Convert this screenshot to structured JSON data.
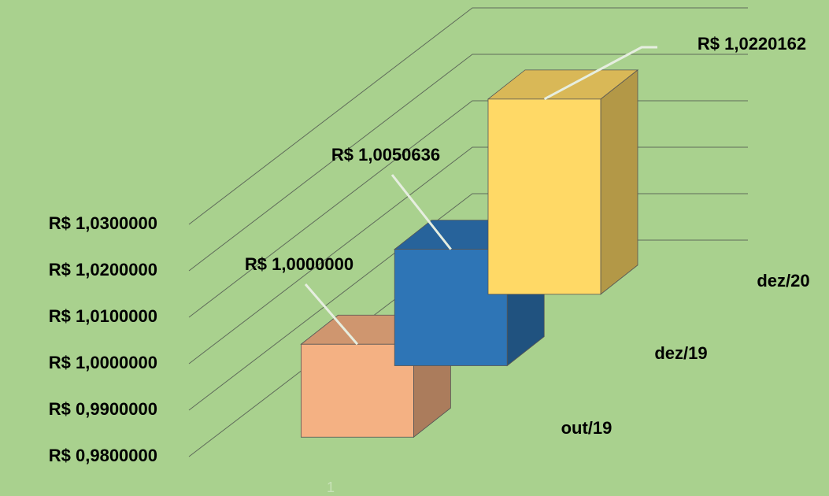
{
  "chart_data": {
    "type": "bar3d",
    "categories": [
      "out/19",
      "dez/19",
      "dez/20"
    ],
    "values": [
      1.0,
      1.0050636,
      1.0220162
    ],
    "value_labels": [
      "R$ 1,0000000",
      "R$ 1,0050636",
      "R$ 1,0220162"
    ],
    "colors": [
      "#f4b183",
      "#2e75b6",
      "#ffd966"
    ],
    "x_label": "1",
    "ylim": [
      0.98,
      1.03
    ],
    "yticks": [
      {
        "value": 0.98,
        "label": "R$ 0,9800000"
      },
      {
        "value": 0.99,
        "label": "R$ 0,9900000"
      },
      {
        "value": 1.0,
        "label": "R$ 1,0000000"
      },
      {
        "value": 1.01,
        "label": "R$ 1,0100000"
      },
      {
        "value": 1.02,
        "label": "R$ 1,0200000"
      },
      {
        "value": 1.03,
        "label": "R$ 1,0300000"
      }
    ],
    "grid": true
  }
}
